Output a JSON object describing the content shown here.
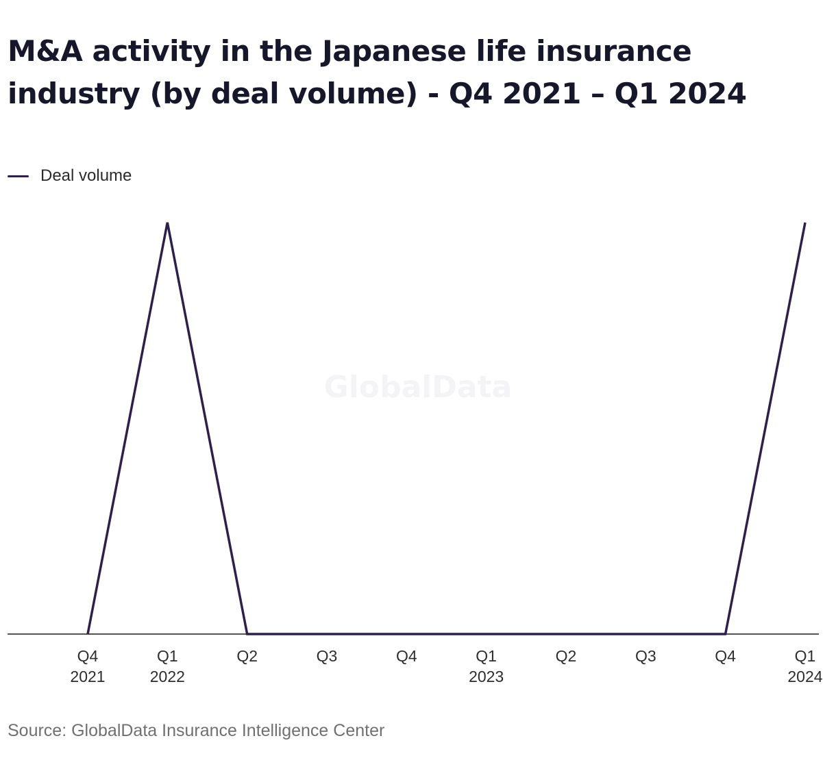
{
  "chart_data": {
    "type": "line",
    "title": "M&A activity in the Japanese life insurance industry (by deal volume) - Q4 2021 – Q1 2024",
    "categories": [
      "Q4 2021",
      "Q1 2022",
      "Q2 2022",
      "Q3 2022",
      "Q4 2022",
      "Q1 2023",
      "Q2 2023",
      "Q3 2023",
      "Q4 2023",
      "Q1 2024"
    ],
    "tick_labels": [
      [
        "Q4",
        "2021"
      ],
      [
        "Q1",
        "2022"
      ],
      [
        "Q2",
        ""
      ],
      [
        "Q3",
        ""
      ],
      [
        "Q4",
        ""
      ],
      [
        "Q1",
        "2023"
      ],
      [
        "Q2",
        ""
      ],
      [
        "Q3",
        ""
      ],
      [
        "Q4",
        ""
      ],
      [
        "Q1",
        "2024"
      ]
    ],
    "series": [
      {
        "name": "Deal volume",
        "values": [
          0,
          1,
          0,
          0,
          0,
          0,
          0,
          0,
          0,
          1
        ],
        "color": "#2e1f4d"
      }
    ],
    "ylim": [
      0,
      1
    ],
    "grid": false,
    "legend": "top-left",
    "watermark": "GlobalData",
    "source": "Source: GlobalData Insurance Intelligence Center"
  }
}
